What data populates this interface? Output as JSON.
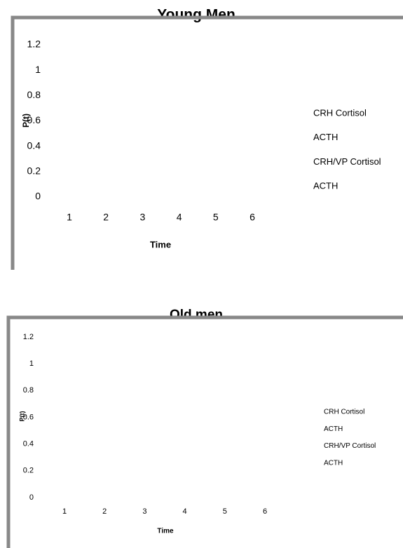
{
  "chart_data": [
    {
      "type": "line",
      "title": "Young Men",
      "x_label": "Time",
      "y_label": "P(t)",
      "categories": [
        "1",
        "2",
        "3",
        "4",
        "5",
        "6"
      ],
      "ylim": [
        0,
        1.2
      ],
      "yticks": [
        0,
        0.2,
        0.4,
        0.6,
        0.8,
        1,
        1.2
      ],
      "series": [
        {
          "name": "CRH Cortisol",
          "values": [
            null,
            null,
            null,
            null,
            null,
            null
          ]
        },
        {
          "name": "ACTH",
          "values": [
            null,
            null,
            null,
            null,
            null,
            null
          ]
        },
        {
          "name": "CRH/VP Cortisol",
          "values": [
            null,
            null,
            null,
            null,
            null,
            null
          ]
        },
        {
          "name": "ACTH",
          "values": [
            null,
            null,
            null,
            null,
            null,
            null
          ]
        }
      ]
    },
    {
      "type": "line",
      "title": "Old men",
      "x_label": "Time",
      "y_label": "P(t)",
      "categories": [
        "1",
        "2",
        "3",
        "4",
        "5",
        "6"
      ],
      "ylim": [
        0,
        1.2
      ],
      "yticks": [
        0,
        0.2,
        0.4,
        0.6,
        0.8,
        1,
        1.2
      ],
      "series": [
        {
          "name": "CRH Cortisol",
          "values": [
            null,
            null,
            null,
            null,
            null,
            null
          ]
        },
        {
          "name": "ACTH",
          "values": [
            null,
            null,
            null,
            null,
            null,
            null
          ]
        },
        {
          "name": "CRH/VP Cortisol",
          "values": [
            null,
            null,
            null,
            null,
            null,
            null
          ]
        },
        {
          "name": "ACTH",
          "values": [
            null,
            null,
            null,
            null,
            null,
            null
          ]
        }
      ]
    }
  ]
}
